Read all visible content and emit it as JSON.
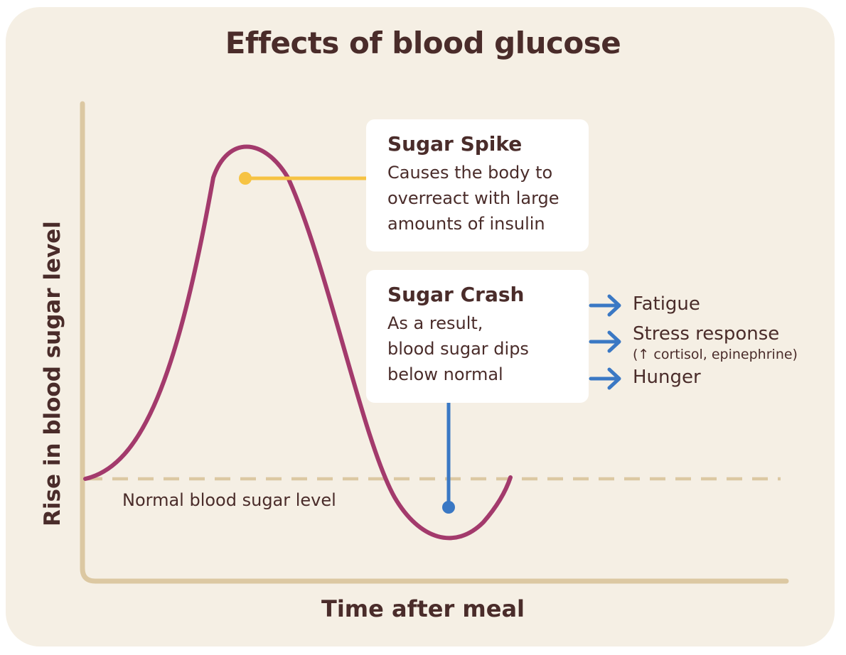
{
  "title": "Effects of blood glucose",
  "y_axis_label": "Rise in blood sugar level",
  "x_axis_label": "Time after meal",
  "baseline_label": "Normal blood sugar level",
  "spike": {
    "heading": "Sugar Spike",
    "text": "Causes the body to\noverreact with large\namounts of insulin"
  },
  "crash": {
    "heading": "Sugar Crash",
    "text": "As a result,\nblood sugar dips\nbelow normal"
  },
  "effects": [
    {
      "label": "Fatigue"
    },
    {
      "label": "Stress response",
      "note": "(↑ cortisol, epinephrine)"
    },
    {
      "label": "Hunger"
    }
  ],
  "colors": {
    "curve": "#a33a6c",
    "spike_marker": "#f6c343",
    "crash_marker": "#3a78c4",
    "axis": "#dcc8a2",
    "baseline": "#dcc8a2",
    "background": "#f5efe4",
    "text": "#4a2c2a"
  }
}
